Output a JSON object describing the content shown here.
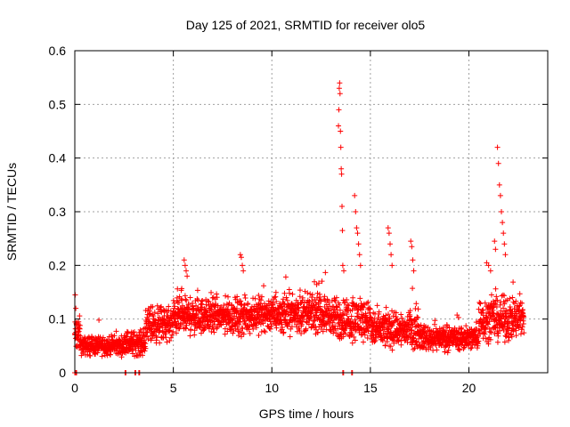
{
  "chart_data": {
    "type": "scatter",
    "title": "Day 125 of 2021, SRMTID for receiver olo5",
    "xlabel": "GPS time / hours",
    "ylabel": "SRMTID / TECUs",
    "xlim": [
      0,
      24
    ],
    "ylim": [
      0,
      0.6
    ],
    "xticks": [
      0,
      5,
      10,
      15,
      20
    ],
    "yticks": [
      0,
      0.1,
      0.2,
      0.3,
      0.4,
      0.5,
      0.6
    ],
    "xtick_labels": [
      "0",
      "5",
      "10",
      "15",
      "20"
    ],
    "ytick_labels": [
      "0",
      "0.1",
      "0.2",
      "0.3",
      "0.4",
      "0.5",
      "0.6"
    ],
    "grid": true,
    "marker": "+",
    "color": "#ff0000",
    "series": [
      {
        "name": "SRMTID",
        "segments": [
          {
            "x_range": [
              0.0,
              0.3
            ],
            "baseline": 0.07,
            "spread": 0.03
          },
          {
            "x_range": [
              0.3,
              2.5
            ],
            "baseline": 0.05,
            "spread": 0.015
          },
          {
            "x_range": [
              2.5,
              3.6
            ],
            "baseline": 0.055,
            "spread": 0.02
          },
          {
            "x_range": [
              3.6,
              5.0
            ],
            "baseline": 0.09,
            "spread": 0.03
          },
          {
            "x_range": [
              5.0,
              9.0
            ],
            "baseline": 0.105,
            "spread": 0.03
          },
          {
            "x_range": [
              9.0,
              13.0
            ],
            "baseline": 0.11,
            "spread": 0.03
          },
          {
            "x_range": [
              13.0,
              15.0
            ],
            "baseline": 0.1,
            "spread": 0.035
          },
          {
            "x_range": [
              15.0,
              17.5
            ],
            "baseline": 0.08,
            "spread": 0.03
          },
          {
            "x_range": [
              17.5,
              20.5
            ],
            "baseline": 0.065,
            "spread": 0.02
          },
          {
            "x_range": [
              20.5,
              22.8
            ],
            "baseline": 0.1,
            "spread": 0.035
          }
        ],
        "peaks": [
          {
            "x": [
              0.0,
              0.02,
              0.05,
              0.1
            ],
            "y": [
              0.0,
              0.145,
              0.12,
              0.09
            ]
          },
          {
            "x": [
              5.55,
              5.6,
              5.65,
              5.7
            ],
            "y": [
              0.21,
              0.2,
              0.19,
              0.18
            ]
          },
          {
            "x": [
              8.4,
              8.45,
              8.5,
              8.55
            ],
            "y": [
              0.22,
              0.215,
              0.2,
              0.19
            ]
          },
          {
            "x": [
              13.38,
              13.4,
              13.42,
              13.44,
              13.46,
              13.48,
              13.5,
              13.52,
              13.54,
              13.56,
              13.58
            ],
            "y": [
              0.46,
              0.49,
              0.53,
              0.54,
              0.52,
              0.45,
              0.42,
              0.38,
              0.37,
              0.31,
              0.265
            ]
          },
          {
            "x": [
              13.6,
              13.65
            ],
            "y": [
              0.2,
              0.19
            ]
          },
          {
            "x": [
              14.2,
              14.25,
              14.3,
              14.35,
              14.4,
              14.45,
              14.5
            ],
            "y": [
              0.33,
              0.3,
              0.27,
              0.26,
              0.24,
              0.22,
              0.2
            ]
          },
          {
            "x": [
              15.9,
              15.95,
              16.0,
              16.05,
              16.1
            ],
            "y": [
              0.27,
              0.26,
              0.24,
              0.22,
              0.2
            ]
          },
          {
            "x": [
              17.05,
              17.1,
              17.15,
              17.2
            ],
            "y": [
              0.245,
              0.235,
              0.21,
              0.19
            ]
          },
          {
            "x": [
              20.9,
              21.0,
              21.1
            ],
            "y": [
              0.205,
              0.2,
              0.19
            ]
          },
          {
            "x": [
              21.45,
              21.5,
              21.55,
              21.6,
              21.65,
              21.7,
              21.75,
              21.8,
              21.85
            ],
            "y": [
              0.42,
              0.39,
              0.35,
              0.33,
              0.3,
              0.28,
              0.26,
              0.24,
              0.22
            ]
          },
          {
            "x": [
              21.3,
              21.35
            ],
            "y": [
              0.245,
              0.23
            ]
          }
        ],
        "zero_points": {
          "x": [
            0.05,
            2.55,
            3.05,
            3.25,
            13.6,
            14.05
          ],
          "y": [
            0,
            0,
            0,
            0,
            0,
            0
          ]
        }
      }
    ]
  }
}
